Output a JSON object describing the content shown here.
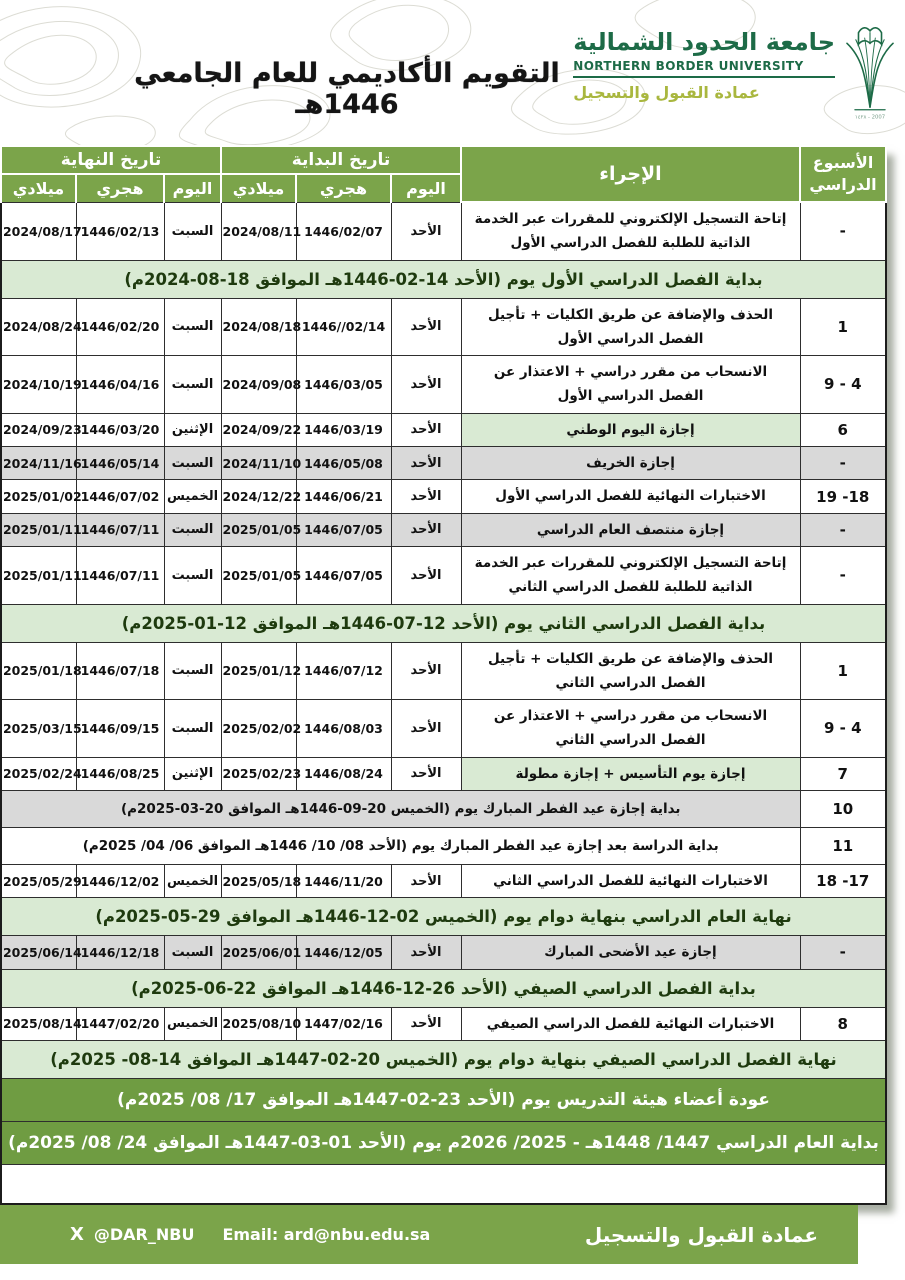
{
  "header": {
    "title": "التقويم الأكاديمي للعام الجامعي 1446هـ",
    "logo": {
      "arabic_name": "جامعة الحدود الشمالية",
      "english_name": "NORTHERN BORDER UNIVERSITY",
      "deanship": "عمادة القبول والتسجيل",
      "year_mark": "2007 - ١٤٢٨"
    }
  },
  "colors": {
    "green": "#7BA44A",
    "dark_banner_green": "#6F9C42",
    "light_green": "#D9EAD3",
    "grey": "#D9D9D9",
    "logo_green": "#1d6b47",
    "deanship_yellow_green": "#a9b73f"
  },
  "table": {
    "headers": {
      "week": "الأسبوع الدراسي",
      "procedure": "الإجراء",
      "start_group": "تاريخ البداية",
      "end_group": "تاريخ النهاية",
      "day": "اليوم",
      "hijri": "هجري",
      "gregorian": "ميلادي"
    },
    "rows": [
      {
        "type": "normal",
        "week": "-",
        "procedure": "إتاحة التسجيل الإلكتروني للمقررات عبر الخدمة الذاتية للطلبة للفصل الدراسي الأول",
        "start": [
          "الأحد",
          "1446/02/07",
          "2024/08/11"
        ],
        "end": [
          "السبت",
          "1446/02/13",
          "2024/08/17"
        ]
      },
      {
        "type": "banner_light",
        "text": "بداية الفصل الدراسي الأول يوم (الأحد 14-02-1446هـ الموافق 18-08-2024م)"
      },
      {
        "type": "normal",
        "week": "1",
        "procedure": "الحذف والإضافة عن طريق الكليات + تأجيل الفصل الدراسي الأول",
        "start": [
          "الأحد",
          "1446//02/14",
          "2024/08/18"
        ],
        "end": [
          "السبت",
          "1446/02/20",
          "2024/08/24"
        ]
      },
      {
        "type": "normal",
        "week": "4 - 9",
        "procedure": "الانسحاب من مقرر دراسي + الاعتذار عن الفصل الدراسي الأول",
        "start": [
          "الأحد",
          "1446/03/05",
          "2024/09/08"
        ],
        "end": [
          "السبت",
          "1446/04/16",
          "2024/10/19"
        ]
      },
      {
        "type": "normal",
        "week": "6",
        "highlight": true,
        "procedure": "إجازة اليوم الوطني",
        "start": [
          "الأحد",
          "1446/03/19",
          "2024/09/22"
        ],
        "end": [
          "الإثنين",
          "1446/03/20",
          "2024/09/23"
        ]
      },
      {
        "type": "normal",
        "week": "-",
        "grey": true,
        "procedure": "إجازة الخريف",
        "start": [
          "الأحد",
          "1446/05/08",
          "2024/11/10"
        ],
        "end": [
          "السبت",
          "1446/05/14",
          "2024/11/16"
        ]
      },
      {
        "type": "normal",
        "week": "18- 19",
        "procedure": "الاختبارات النهائية للفصل الدراسي الأول",
        "start": [
          "الأحد",
          "1446/06/21",
          "2024/12/22"
        ],
        "end": [
          "الخميس",
          "1446/07/02",
          "2025/01/02"
        ]
      },
      {
        "type": "normal",
        "week": "-",
        "grey": true,
        "procedure": "إجازة منتصف العام الدراسي",
        "start": [
          "الأحد",
          "1446/07/05",
          "2025/01/05"
        ],
        "end": [
          "السبت",
          "1446/07/11",
          "2025/01/11"
        ]
      },
      {
        "type": "normal",
        "week": "-",
        "procedure": "إتاحة التسجيل الإلكتروني للمقررات عبر الخدمة الذاتية للطلبة للفصل الدراسي الثاني",
        "start": [
          "الأحد",
          "1446/07/05",
          "2025/01/05"
        ],
        "end": [
          "السبت",
          "1446/07/11",
          "2025/01/11"
        ]
      },
      {
        "type": "banner_light",
        "text": "بداية الفصل الدراسي الثاني يوم (الأحد 12-07-1446هـ الموافق 12-01-2025م)"
      },
      {
        "type": "normal",
        "week": "1",
        "procedure": "الحذف والإضافة عن طريق الكليات + تأجيل الفصل الدراسي الثاني",
        "start": [
          "الأحد",
          "1446/07/12",
          "2025/01/12"
        ],
        "end": [
          "السبت",
          "1446/07/18",
          "2025/01/18"
        ]
      },
      {
        "type": "normal",
        "week": "4 - 9",
        "procedure": "الانسحاب من مقرر دراسي + الاعتذار عن الفصل الدراسي الثاني",
        "start": [
          "الأحد",
          "1446/08/03",
          "2025/02/02"
        ],
        "end": [
          "السبت",
          "1446/09/15",
          "2025/03/15"
        ]
      },
      {
        "type": "normal",
        "week": "7",
        "highlight": true,
        "procedure": "إجازة يوم التأسيس + إجازة مطولة",
        "start": [
          "الأحد",
          "1446/08/24",
          "2025/02/23"
        ],
        "end": [
          "الإثنين",
          "1446/08/25",
          "2025/02/24"
        ]
      },
      {
        "type": "merged",
        "week": "10",
        "grey_text": true,
        "text": "بداية إجازة عيد الفطر المبارك يوم (الخميس 20-09-1446هـ الموافق 20-03-2025م)"
      },
      {
        "type": "merged",
        "week": "11",
        "text": "بداية الدراسة بعد إجازة عيد الفطر المبارك يوم (الأحد 08/ 10/ 1446هـ الموافق 06/ 04/ 2025م)"
      },
      {
        "type": "normal",
        "week": "17- 18",
        "procedure": "الاختبارات النهائية للفصل الدراسي الثاني",
        "start": [
          "الأحد",
          "1446/11/20",
          "2025/05/18"
        ],
        "end": [
          "الخميس",
          "1446/12/02",
          "2025/05/29"
        ]
      },
      {
        "type": "banner_light",
        "text": "نهاية العام الدراسي بنهاية دوام يوم (الخميس 02-12-1446هـ الموافق 29-05-2025م)"
      },
      {
        "type": "normal",
        "week": "-",
        "grey": true,
        "procedure": "إجازة عيد الأضحى المبارك",
        "start": [
          "الأحد",
          "1446/12/05",
          "2025/06/01"
        ],
        "end": [
          "السبت",
          "1446/12/18",
          "2025/06/14"
        ]
      },
      {
        "type": "banner_light",
        "text": "بداية الفصل الدراسي الصيفي (الأحد 26-12-1446هـ الموافق 22-06-2025م)"
      },
      {
        "type": "normal",
        "week": "8",
        "procedure": "الاختبارات النهائية للفصل الدراسي الصيفي",
        "start": [
          "الأحد",
          "1447/02/16",
          "2025/08/10"
        ],
        "end": [
          "الخميس",
          "1447/02/20",
          "2025/08/14"
        ]
      },
      {
        "type": "banner_light",
        "text": "نهاية الفصل الدراسي الصيفي بنهاية دوام يوم (الخميس 20-02-1447هـ الموافق 14-08- 2025م)"
      },
      {
        "type": "banner_dark",
        "text": "عودة أعضاء هيئة التدريس يوم (الأحد 23-02-1447هـ الموافق 17/ 08/ 2025م)"
      },
      {
        "type": "banner_dark",
        "text": "بداية العام الدراسي 1447/ 1448هـ - 2025/ 2026م يوم (الأحد 01-03-1447هـ الموافق 24/ 08/ 2025م)"
      },
      {
        "type": "empty"
      }
    ]
  },
  "footer": {
    "deanship": "عمادة القبول والتسجيل",
    "x_icon": "X",
    "x_handle": "@DAR_NBU",
    "email": "Email: ard@nbu.edu.sa"
  }
}
